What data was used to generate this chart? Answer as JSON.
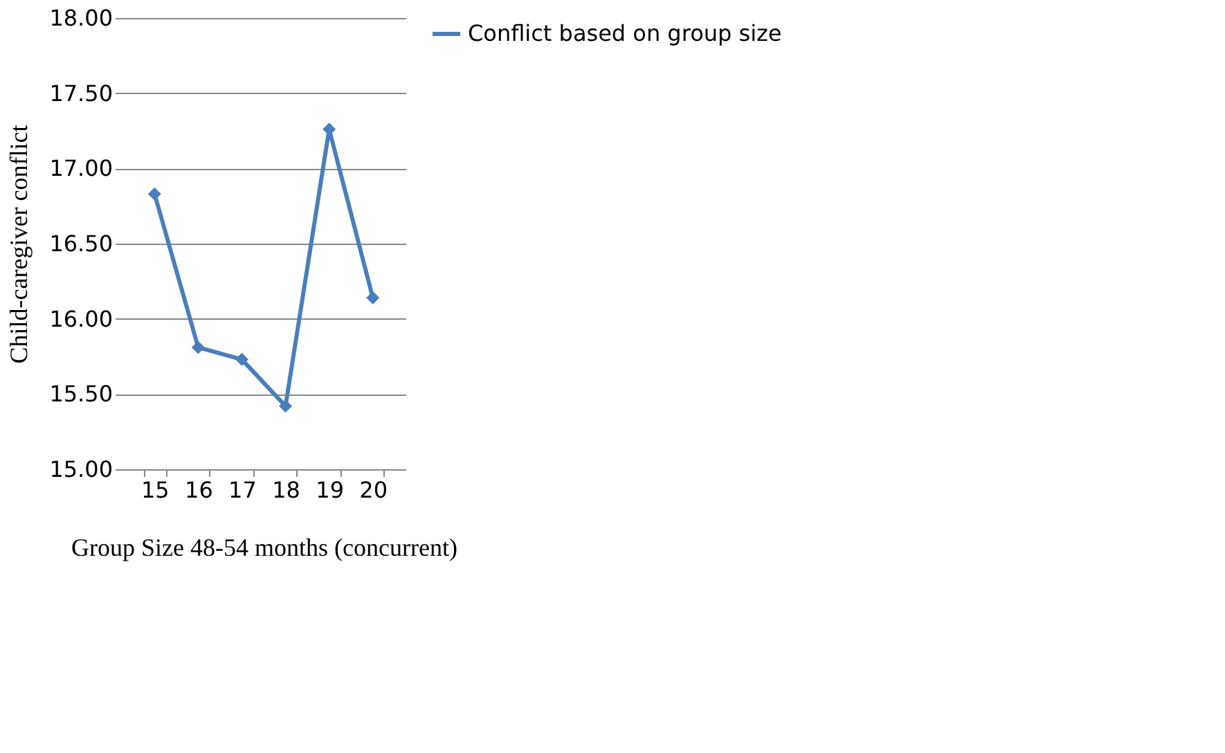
{
  "chart_data": {
    "type": "line",
    "xlabel": "Group Size 48-54 months (concurrent)",
    "ylabel": "Child-caregiver conflict",
    "categories": [
      "15",
      "16",
      "17",
      "18",
      "19",
      "20"
    ],
    "series": [
      {
        "name": "Conflict based on group size",
        "color": "#4a7ebb",
        "values": [
          16.83,
          15.81,
          15.73,
          15.42,
          17.26,
          16.14
        ]
      }
    ],
    "ylim": [
      15,
      18
    ],
    "yticks": [
      {
        "value": 15,
        "label": "15.00"
      },
      {
        "value": 15.5,
        "label": "15.50"
      },
      {
        "value": 16,
        "label": "16.00"
      },
      {
        "value": 16.5,
        "label": "16.50"
      },
      {
        "value": 17,
        "label": "17.00"
      },
      {
        "value": 17.5,
        "label": "17.50"
      },
      {
        "value": 18,
        "label": "18.00"
      }
    ],
    "grid": "y",
    "legend": "right",
    "marker": "diamond",
    "line_style": "solid"
  }
}
